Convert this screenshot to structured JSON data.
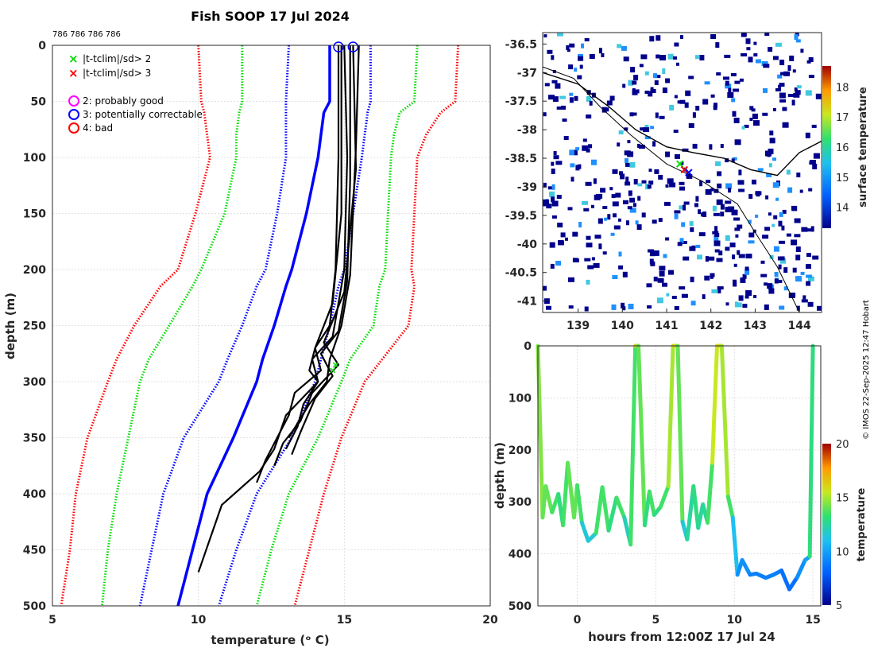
{
  "title": "Fish SOOP 17 Jul 2024",
  "ids_text": "786 786 786 786",
  "credit": "© IMOS 22-Sep-2025 12:47 Hobart",
  "legend": {
    "x2": "|t-tclim|/sd> 2",
    "x3": "|t-tclim|/sd> 3",
    "q2": "2: probably good",
    "q3": "3: potentially correctable",
    "q4": "4: bad"
  },
  "colors": {
    "red": "#ff0000",
    "green": "#00dd00",
    "blue": "#0000ff",
    "magenta": "#ff00ff",
    "profile": "#000000",
    "cyan": "#33bbcc",
    "navy": "#00008b"
  },
  "chart_data": [
    {
      "type": "line",
      "name": "profile",
      "xlabel": "temperature (ᵒ C)",
      "ylabel": "depth (m)",
      "xlim": [
        5,
        20
      ],
      "ylim": [
        0,
        500
      ],
      "xticks": [
        "5",
        "10",
        "15",
        "20"
      ],
      "yticks": [
        "0",
        "50",
        "100",
        "150",
        "200",
        "250",
        "300",
        "350",
        "400",
        "450",
        "500"
      ],
      "depth_grid": [
        0,
        50,
        60,
        80,
        100,
        150,
        200,
        215,
        250,
        280,
        300,
        350,
        400,
        450,
        500
      ],
      "envelopes": [
        {
          "name": "mean",
          "color": "#0000ff",
          "style": "solid",
          "t": [
            14.5,
            14.5,
            14.3,
            14.2,
            14.1,
            13.7,
            13.2,
            13.0,
            12.6,
            12.2,
            12.0,
            11.2,
            10.3,
            9.8,
            9.3
          ]
        },
        {
          "name": "-2sd",
          "color": "#0000ff",
          "style": "dotted",
          "t": [
            13.1,
            13.0,
            13.0,
            13.0,
            13.0,
            12.7,
            12.3,
            12.0,
            11.5,
            11.0,
            10.7,
            9.5,
            8.8,
            8.4,
            8.0
          ]
        },
        {
          "name": "+2sd",
          "color": "#0000ff",
          "style": "dotted",
          "t": [
            15.9,
            15.9,
            15.8,
            15.7,
            15.6,
            15.3,
            15.0,
            14.8,
            14.5,
            14.2,
            14.0,
            13.2,
            12.0,
            11.3,
            10.7
          ]
        },
        {
          "name": "-3sd",
          "color": "#00dd00",
          "style": "dotted",
          "t": [
            11.5,
            11.5,
            11.4,
            11.3,
            11.3,
            10.9,
            10.1,
            9.8,
            9.0,
            8.3,
            8.0,
            7.6,
            7.2,
            6.9,
            6.7
          ]
        },
        {
          "name": "+3sd",
          "color": "#00dd00",
          "style": "dotted",
          "t": [
            17.5,
            17.4,
            16.9,
            16.7,
            16.6,
            16.5,
            16.4,
            16.2,
            16.0,
            15.2,
            14.9,
            14.1,
            13.1,
            12.5,
            12.0
          ]
        },
        {
          "name": "-4sd",
          "color": "#ff0000",
          "style": "dotted",
          "t": [
            10.0,
            10.1,
            10.2,
            10.3,
            10.4,
            9.9,
            9.3,
            8.7,
            7.8,
            7.2,
            6.9,
            6.2,
            5.8,
            5.6,
            5.3
          ]
        },
        {
          "name": "+4sd",
          "color": "#ff0000",
          "style": "dotted",
          "t": [
            18.9,
            18.8,
            18.3,
            17.8,
            17.5,
            17.4,
            17.3,
            17.4,
            17.2,
            16.3,
            15.7,
            14.9,
            14.3,
            13.8,
            13.3
          ]
        }
      ],
      "profiles": [
        {
          "depth": [
            0,
            100,
            200,
            250,
            270,
            290,
            300,
            320,
            340,
            360
          ],
          "t": [
            14.8,
            14.8,
            14.7,
            14.5,
            14.0,
            13.8,
            14.1,
            13.6,
            13.4,
            13.0
          ]
        },
        {
          "depth": [
            0,
            100,
            200,
            260,
            280,
            300,
            330,
            360,
            380,
            410,
            440,
            470
          ],
          "t": [
            15.0,
            15.1,
            15.0,
            14.6,
            13.9,
            14.1,
            13.0,
            12.6,
            12.1,
            10.8,
            10.4,
            10.0
          ]
        },
        {
          "depth": [
            0,
            120,
            210,
            255,
            275,
            295,
            315,
            345,
            365
          ],
          "t": [
            15.2,
            15.2,
            15.1,
            14.8,
            14.2,
            14.6,
            14.0,
            13.5,
            13.2
          ]
        },
        {
          "depth": [
            0,
            110,
            220,
            265,
            285,
            310,
            335,
            355,
            375
          ],
          "t": [
            15.3,
            15.4,
            15.0,
            14.3,
            14.8,
            13.9,
            13.5,
            12.9,
            12.6
          ]
        },
        {
          "depth": [
            0,
            90,
            205,
            250,
            280,
            300,
            320,
            350
          ],
          "t": [
            15.5,
            15.4,
            15.2,
            14.9,
            14.5,
            14.4,
            13.8,
            13.1
          ]
        },
        {
          "depth": [
            0,
            150,
            230,
            270,
            290,
            310,
            330,
            370,
            390
          ],
          "t": [
            14.9,
            14.9,
            14.6,
            14.0,
            14.2,
            13.3,
            13.1,
            12.3,
            12.0
          ]
        }
      ],
      "flagged_good": [
        {
          "t": 14.8,
          "depth": 0
        },
        {
          "t": 15.3,
          "depth": 0
        }
      ],
      "green_x": [
        {
          "t": 14.7,
          "depth": 285
        },
        {
          "t": 14.6,
          "depth": 290
        }
      ]
    },
    {
      "type": "heatmap",
      "name": "map",
      "xlim": [
        138.2,
        144.5
      ],
      "ylim": [
        -41.2,
        -36.3
      ],
      "xticks": [
        "139",
        "140",
        "141",
        "142",
        "143",
        "144"
      ],
      "yticks": [
        "-36.5",
        "-37",
        "-37.5",
        "-38",
        "-38.5",
        "-39",
        "-39.5",
        "-40",
        "-40.5",
        "-41"
      ],
      "colorbar_label": "surface temperature",
      "colorbar_ticks": [
        "14",
        "15",
        "16",
        "17",
        "18"
      ],
      "colorbar_range": [
        13.3,
        18.7
      ],
      "coast": [
        [
          138.2,
          -37.0
        ],
        [
          139.0,
          -37.2
        ],
        [
          139.7,
          -37.6
        ],
        [
          140.3,
          -38.0
        ],
        [
          141.0,
          -38.3
        ],
        [
          141.6,
          -38.4
        ],
        [
          142.3,
          -38.5
        ],
        [
          142.9,
          -38.7
        ],
        [
          143.5,
          -38.8
        ],
        [
          144.0,
          -38.4
        ],
        [
          144.5,
          -38.2
        ]
      ],
      "shelf": [
        [
          138.2,
          -36.9
        ],
        [
          138.9,
          -37.1
        ],
        [
          139.5,
          -37.6
        ],
        [
          140.2,
          -38.1
        ],
        [
          141.0,
          -38.6
        ],
        [
          141.8,
          -38.9
        ],
        [
          142.6,
          -39.3
        ],
        [
          143.0,
          -39.8
        ],
        [
          143.5,
          -40.4
        ],
        [
          144.0,
          -41.2
        ]
      ],
      "tracks": [
        {
          "lon": 141.3,
          "lat": -38.6
        },
        {
          "lon": 141.4,
          "lat": -38.7
        },
        {
          "lon": 141.5,
          "lat": -38.75
        }
      ]
    },
    {
      "type": "line",
      "name": "timeseries",
      "xlabel": "hours from 12:00Z 17 Jul 24",
      "ylabel": "depth (m)",
      "xlim": [
        -2.5,
        15.5
      ],
      "ylim": [
        0,
        500
      ],
      "xticks": [
        "0",
        "5",
        "10",
        "15"
      ],
      "yticks": [
        "0",
        "100",
        "200",
        "300",
        "400",
        "500"
      ],
      "colorbar_label": "temperature",
      "colorbar_ticks": [
        "5",
        "10",
        "15",
        "20"
      ],
      "colorbar_range": [
        5,
        20
      ],
      "hours": [
        -2.5,
        -2.2,
        -2.0,
        -1.6,
        -1.2,
        -0.9,
        -0.6,
        -0.2,
        0.0,
        0.3,
        0.7,
        1.2,
        1.6,
        2.0,
        2.5,
        3.0,
        3.4,
        3.7,
        3.9,
        4.3,
        4.6,
        4.9,
        5.3,
        5.8,
        6.1,
        6.4,
        6.7,
        7.0,
        7.4,
        7.7,
        8.0,
        8.3,
        8.6,
        8.9,
        9.2,
        9.6,
        9.9,
        10.2,
        10.5,
        11.0,
        11.4,
        12.0,
        12.5,
        13.0,
        13.5,
        14.0,
        14.5,
        14.8,
        15.0
      ],
      "depths": [
        0,
        330,
        270,
        320,
        285,
        345,
        225,
        330,
        268,
        340,
        375,
        360,
        272,
        355,
        292,
        330,
        382,
        0,
        0,
        345,
        280,
        325,
        310,
        270,
        0,
        0,
        338,
        372,
        270,
        350,
        305,
        340,
        225,
        0,
        0,
        290,
        330,
        440,
        412,
        440,
        438,
        446,
        440,
        432,
        468,
        445,
        412,
        405,
        0
      ],
      "temps": [
        16,
        13,
        15,
        13,
        14,
        12,
        15,
        13,
        15,
        12,
        11,
        12,
        15,
        12,
        14,
        13,
        11,
        16,
        16,
        12,
        14,
        13,
        13,
        14,
        16,
        16,
        12,
        11,
        14,
        12,
        13,
        12,
        15,
        16,
        16,
        14,
        13,
        9,
        10,
        9,
        9,
        9,
        9,
        9,
        8,
        9,
        10,
        10,
        16
      ]
    }
  ]
}
